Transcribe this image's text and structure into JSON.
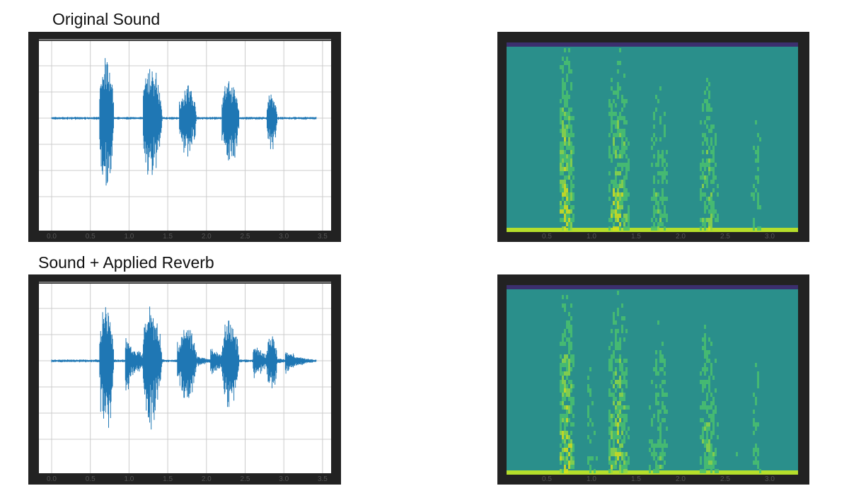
{
  "panels": [
    {
      "title": "Original Sound",
      "waveform_xticks": [
        "0.0",
        "0.5",
        "1.0",
        "1.5",
        "2.0",
        "2.5",
        "3.0",
        "3.5"
      ],
      "spectrogram_xticks": [
        "0.5",
        "1.0",
        "1.5",
        "2.0",
        "2.5",
        "3.0"
      ]
    },
    {
      "title": "Sound + Applied Reverb",
      "waveform_xticks": [
        "0.0",
        "0.5",
        "1.0",
        "1.5",
        "2.0",
        "2.5",
        "3.0",
        "3.5"
      ],
      "spectrogram_xticks": [
        "0.5",
        "1.0",
        "1.5",
        "2.0",
        "2.5",
        "3.0"
      ]
    }
  ]
}
